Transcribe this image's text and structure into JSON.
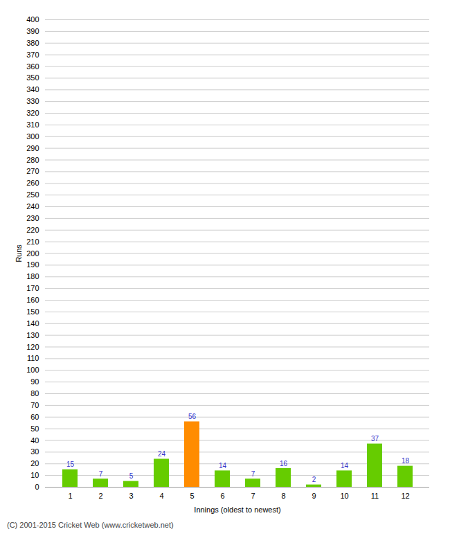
{
  "chart_data": {
    "type": "bar",
    "xlabel": "Innings (oldest to newest)",
    "ylabel": "Runs",
    "caption": "(C) 2001-2015 Cricket Web (www.cricketweb.net)",
    "categories": [
      1,
      2,
      3,
      4,
      5,
      6,
      7,
      8,
      9,
      10,
      11,
      12
    ],
    "values": [
      15,
      7,
      5,
      24,
      56,
      14,
      7,
      16,
      2,
      14,
      37,
      18
    ],
    "colors": [
      "#66cc00",
      "#66cc00",
      "#66cc00",
      "#66cc00",
      "#ff8c00",
      "#66cc00",
      "#66cc00",
      "#66cc00",
      "#66cc00",
      "#66cc00",
      "#66cc00",
      "#66cc00"
    ],
    "ylim": [
      0,
      400
    ],
    "yticks": [
      0,
      10,
      20,
      30,
      40,
      50,
      60,
      70,
      80,
      90,
      100,
      110,
      120,
      130,
      140,
      150,
      160,
      170,
      180,
      190,
      200,
      210,
      220,
      230,
      240,
      250,
      260,
      270,
      280,
      290,
      300,
      310,
      320,
      330,
      340,
      350,
      360,
      370,
      380,
      390,
      400
    ],
    "grid": true,
    "data_labels": true
  }
}
